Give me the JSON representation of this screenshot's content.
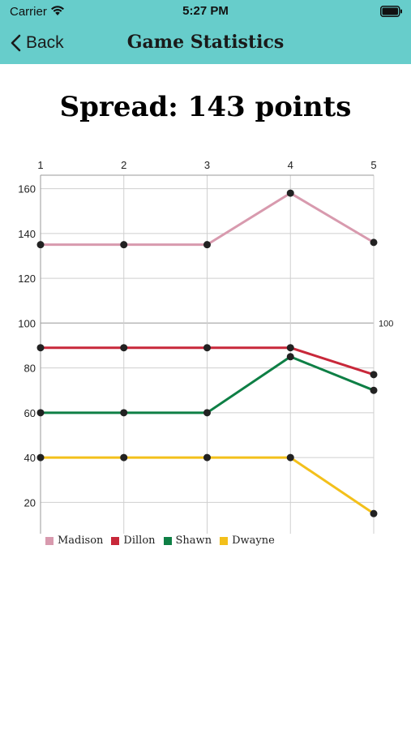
{
  "status": {
    "carrier": "Carrier",
    "time": "5:27 PM"
  },
  "nav": {
    "back_label": "Back",
    "title": "Game Statistics"
  },
  "heading": "Spread: 143 points",
  "chart_data": {
    "type": "line",
    "x": [
      1,
      2,
      3,
      4,
      5
    ],
    "xticks_position": "top",
    "ylim": [
      6,
      166
    ],
    "yticks": [
      20,
      40,
      60,
      80,
      100,
      120,
      140,
      160
    ],
    "right_axis_label": "100",
    "grid": true,
    "legend_position": "bottom-left",
    "series": [
      {
        "name": "Madison",
        "color": "#D89AAE",
        "values": [
          135,
          135,
          135,
          158,
          136
        ]
      },
      {
        "name": "Dillon",
        "color": "#C8283A",
        "values": [
          89,
          89,
          89,
          89,
          77
        ]
      },
      {
        "name": "Shawn",
        "color": "#0E7F45",
        "values": [
          60,
          60,
          60,
          85,
          70
        ]
      },
      {
        "name": "Dwayne",
        "color": "#F3C01B",
        "values": [
          40,
          40,
          40,
          40,
          15
        ]
      }
    ]
  }
}
